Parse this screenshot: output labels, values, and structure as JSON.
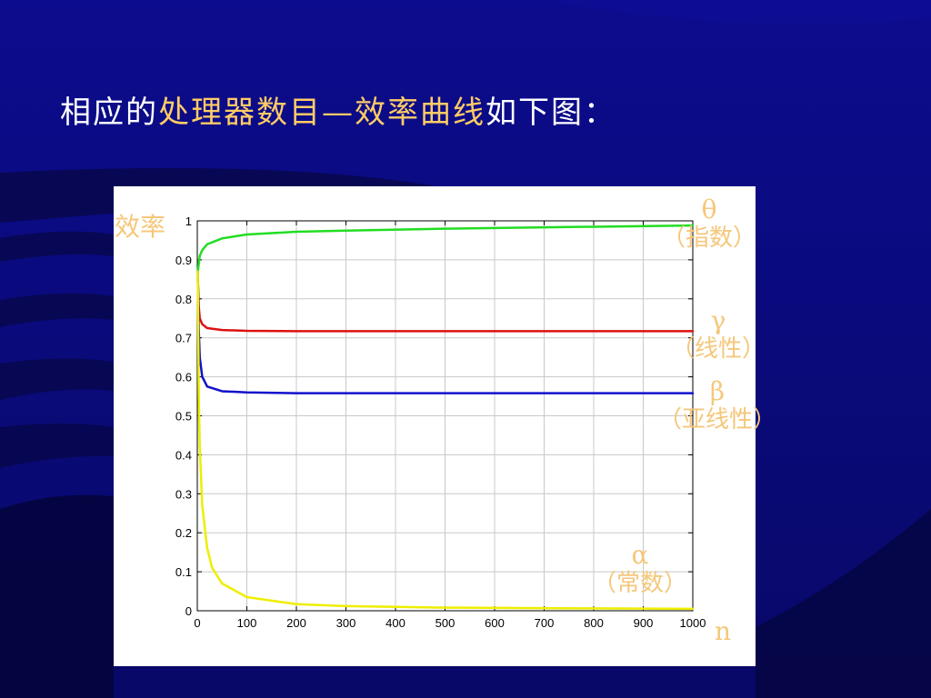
{
  "slide": {
    "title_parts": [
      {
        "text": "相应的",
        "color": "#ffffff"
      },
      {
        "text": "处理器数目—效率曲线",
        "color": "#ffcc66"
      },
      {
        "text": "如下图：",
        "color": "#ffffff"
      }
    ]
  },
  "chart_data": {
    "type": "line",
    "xlabel": "n",
    "ylabel": "效率",
    "xlim": [
      0,
      1000
    ],
    "ylim": [
      0,
      1
    ],
    "xticks": [
      0,
      100,
      200,
      300,
      400,
      500,
      600,
      700,
      800,
      900,
      1000
    ],
    "yticks": [
      0,
      0.1,
      0.2,
      0.3,
      0.4,
      0.5,
      0.6,
      0.7,
      0.8,
      0.9,
      1
    ],
    "xtick_labels": [
      "0",
      "100",
      "200",
      "300",
      "400",
      "500",
      "600",
      "700",
      "800",
      "900",
      "1000"
    ],
    "ytick_labels": [
      "0",
      "0.1",
      "0.2",
      "0.3",
      "0.4",
      "0.5",
      "0.6",
      "0.7",
      "0.8",
      "0.9",
      "1"
    ],
    "grid": true,
    "series": [
      {
        "symbol": "θ",
        "name": "（指数）",
        "color": "#22dd22",
        "x": [
          1,
          5,
          10,
          20,
          50,
          100,
          200,
          300,
          500,
          800,
          1000
        ],
        "y": [
          0.87,
          0.91,
          0.925,
          0.94,
          0.955,
          0.965,
          0.972,
          0.975,
          0.98,
          0.985,
          0.988
        ]
      },
      {
        "symbol": "γ",
        "name": "（线性）",
        "color": "#dd1111",
        "x": [
          1,
          3,
          5,
          10,
          20,
          50,
          100,
          200,
          500,
          800,
          1000
        ],
        "y": [
          0.85,
          0.78,
          0.75,
          0.735,
          0.725,
          0.72,
          0.718,
          0.717,
          0.717,
          0.717,
          0.717
        ]
      },
      {
        "symbol": "β",
        "name": "（亚线性）",
        "color": "#1111cc",
        "x": [
          1,
          3,
          5,
          10,
          20,
          50,
          100,
          200,
          500,
          800,
          1000
        ],
        "y": [
          0.87,
          0.72,
          0.65,
          0.6,
          0.575,
          0.563,
          0.56,
          0.558,
          0.558,
          0.558,
          0.558
        ]
      },
      {
        "symbol": "α",
        "name": "（常数）",
        "color": "#eeee00",
        "x": [
          1,
          3,
          5,
          10,
          20,
          30,
          50,
          100,
          200,
          300,
          500,
          800,
          1000
        ],
        "y": [
          0.87,
          0.55,
          0.42,
          0.27,
          0.16,
          0.11,
          0.07,
          0.035,
          0.017,
          0.012,
          0.008,
          0.006,
          0.005
        ]
      }
    ]
  }
}
